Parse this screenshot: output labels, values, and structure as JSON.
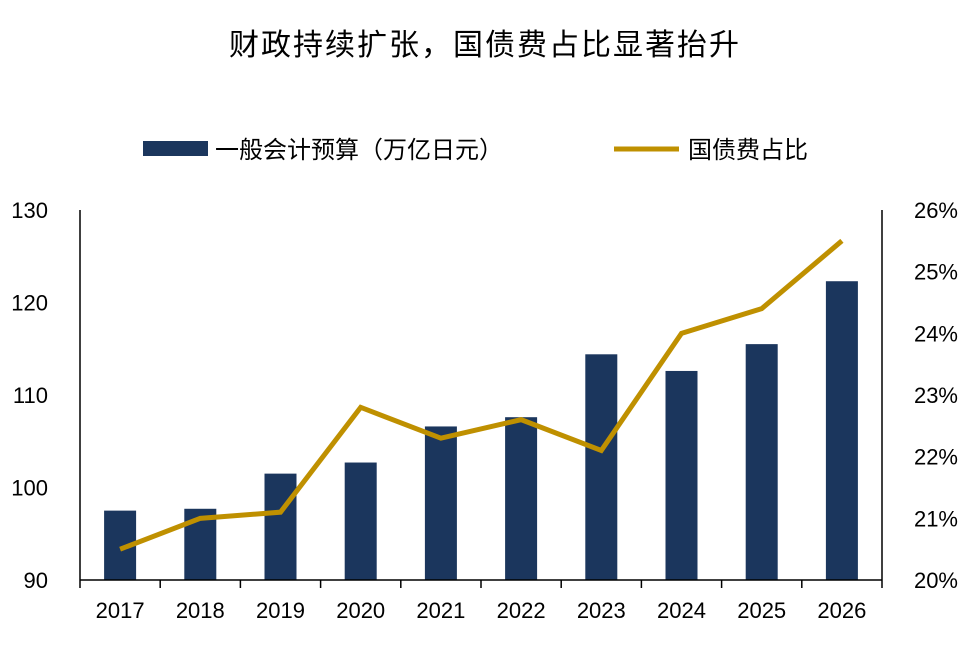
{
  "chart_data": {
    "type": "bar+line",
    "title": "财政持续扩张，国债费占比显著抬升",
    "categories": [
      "2017",
      "2018",
      "2019",
      "2020",
      "2021",
      "2022",
      "2023",
      "2024",
      "2025",
      "2026"
    ],
    "series": [
      {
        "name": "一般会计预算（万亿日元）",
        "type": "bar",
        "axis": "left",
        "color": "#1b365d",
        "values": [
          97.5,
          97.7,
          101.5,
          102.7,
          106.6,
          107.6,
          114.4,
          112.6,
          115.5,
          122.3
        ]
      },
      {
        "name": "国债费占比",
        "type": "line",
        "axis": "right",
        "color": "#bf9000",
        "values": [
          20.5,
          21.0,
          21.1,
          22.8,
          22.3,
          22.6,
          22.1,
          24.0,
          24.4,
          25.5
        ]
      }
    ],
    "y_left": {
      "min": 90,
      "max": 130,
      "ticks": [
        "90",
        "100",
        "110",
        "120",
        "130"
      ]
    },
    "y_right": {
      "min": 20,
      "max": 26,
      "ticks": [
        "20%",
        "21%",
        "22%",
        "23%",
        "24%",
        "25%",
        "26%"
      ]
    },
    "legend_position": "top",
    "grid": false
  }
}
